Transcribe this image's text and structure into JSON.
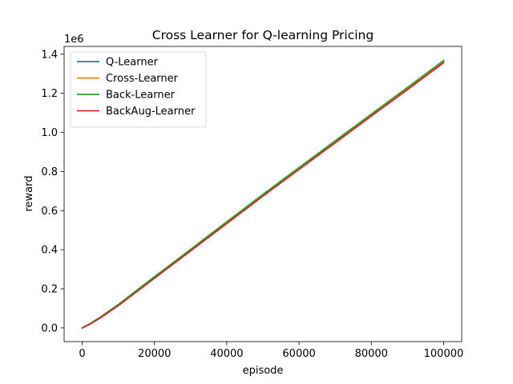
{
  "chart_data": {
    "type": "line",
    "title": "Cross Learner for Q-learning Pricing",
    "xlabel": "episode",
    "ylabel": "reward",
    "y_offset_label": "1e6",
    "xlim": [
      -5000,
      105000
    ],
    "ylim": [
      -70000,
      1440000
    ],
    "xticks": [
      0,
      20000,
      40000,
      60000,
      80000,
      100000
    ],
    "xtick_labels": [
      "0",
      "20000",
      "40000",
      "60000",
      "80000",
      "100000"
    ],
    "yticks": [
      0,
      200000,
      400000,
      600000,
      800000,
      1000000,
      1200000,
      1400000
    ],
    "ytick_labels": [
      "0.0",
      "0.2",
      "0.4",
      "0.6",
      "0.8",
      "1.0",
      "1.2",
      "1.4"
    ],
    "grid": false,
    "legend_position": "top-left",
    "series": [
      {
        "name": "Q-Learner",
        "color": "#1f77b4",
        "x": [
          0,
          2000,
          5000,
          10000,
          20000,
          30000,
          40000,
          50000,
          60000,
          70000,
          80000,
          90000,
          100000
        ],
        "y": [
          0,
          18000,
          52000,
          115000,
          255000,
          395000,
          535000,
          675000,
          812000,
          948000,
          1085000,
          1220000,
          1358000
        ]
      },
      {
        "name": "Cross-Learner",
        "color": "#ff7f0e",
        "x": [
          0,
          2000,
          5000,
          10000,
          20000,
          30000,
          40000,
          50000,
          60000,
          70000,
          80000,
          90000,
          100000
        ],
        "y": [
          0,
          19000,
          53000,
          117000,
          258000,
          398000,
          539000,
          679000,
          816000,
          953000,
          1090000,
          1226000,
          1364000
        ]
      },
      {
        "name": "Back-Learner",
        "color": "#2ca02c",
        "x": [
          0,
          2000,
          5000,
          10000,
          20000,
          30000,
          40000,
          50000,
          60000,
          70000,
          80000,
          90000,
          100000
        ],
        "y": [
          0,
          20000,
          55000,
          120000,
          262000,
          402000,
          543000,
          683000,
          820000,
          957000,
          1094000,
          1230000,
          1368000
        ]
      },
      {
        "name": "BackAug-Learner",
        "color": "#d62728",
        "x": [
          0,
          2000,
          5000,
          10000,
          20000,
          30000,
          40000,
          50000,
          60000,
          70000,
          80000,
          90000,
          100000
        ],
        "y": [
          0,
          18000,
          51000,
          114000,
          254000,
          394000,
          534000,
          674000,
          811000,
          947000,
          1084000,
          1219000,
          1357000
        ]
      }
    ]
  }
}
